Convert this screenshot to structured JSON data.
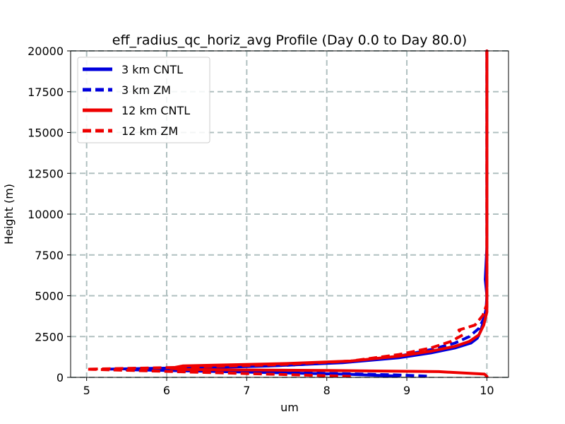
{
  "chart_data": {
    "type": "line",
    "title": "eff_radius_qc_horiz_avg Profile (Day 0.0 to Day 80.0)",
    "xlabel": "um",
    "ylabel": "Height (m)",
    "xlim": [
      4.8,
      10.27
    ],
    "ylim": [
      0,
      20000
    ],
    "x_ticks": [
      5,
      6,
      7,
      8,
      9,
      10
    ],
    "y_ticks": [
      0,
      2500,
      5000,
      7500,
      10000,
      12500,
      15000,
      17500,
      20000
    ],
    "grid": true,
    "legend_position": "upper-left",
    "series": [
      {
        "name": "3 km CNTL",
        "color": "#0000dd",
        "style": "solid",
        "points": [
          [
            8.9,
            80
          ],
          [
            8.3,
            180
          ],
          [
            7.4,
            280
          ],
          [
            6.7,
            350
          ],
          [
            6.0,
            420
          ],
          [
            5.5,
            470
          ],
          [
            6.2,
            560
          ],
          [
            7.3,
            700
          ],
          [
            8.2,
            900
          ],
          [
            8.9,
            1200
          ],
          [
            9.3,
            1500
          ],
          [
            9.6,
            1800
          ],
          [
            9.8,
            2100
          ],
          [
            9.88,
            2400
          ],
          [
            9.92,
            2800
          ],
          [
            9.96,
            3500
          ],
          [
            9.99,
            4200
          ],
          [
            10.0,
            5000
          ],
          [
            9.98,
            6000
          ],
          [
            10.0,
            8000
          ],
          [
            10.0,
            10000
          ],
          [
            10.0,
            15000
          ],
          [
            10.0,
            20000
          ]
        ]
      },
      {
        "name": "3 km ZM",
        "color": "#0000dd",
        "style": "dashed",
        "points": [
          [
            9.25,
            80
          ],
          [
            8.8,
            160
          ],
          [
            7.9,
            260
          ],
          [
            7.0,
            360
          ],
          [
            6.0,
            430
          ],
          [
            5.2,
            500
          ],
          [
            6.4,
            600
          ],
          [
            7.5,
            740
          ],
          [
            8.3,
            950
          ],
          [
            8.9,
            1300
          ],
          [
            9.3,
            1700
          ],
          [
            9.6,
            2100
          ],
          [
            9.78,
            2500
          ],
          [
            9.9,
            3000
          ],
          [
            9.96,
            3600
          ],
          [
            10.0,
            4300
          ],
          [
            10.0,
            5000
          ],
          [
            10.0,
            8000
          ],
          [
            10.0,
            12000
          ],
          [
            10.0,
            16000
          ],
          [
            10.0,
            20000
          ]
        ]
      },
      {
        "name": "12 km CNTL",
        "color": "#ee0000",
        "style": "solid",
        "points": [
          [
            10.0,
            60
          ],
          [
            9.97,
            200
          ],
          [
            9.4,
            350
          ],
          [
            8.0,
            420
          ],
          [
            6.2,
            480
          ],
          [
            6.05,
            560
          ],
          [
            6.2,
            700
          ],
          [
            7.5,
            850
          ],
          [
            8.3,
            1000
          ],
          [
            8.9,
            1300
          ],
          [
            9.3,
            1600
          ],
          [
            9.6,
            1900
          ],
          [
            9.78,
            2200
          ],
          [
            9.9,
            2600
          ],
          [
            9.96,
            3200
          ],
          [
            10.0,
            4000
          ],
          [
            10.0,
            5000
          ],
          [
            10.0,
            8000
          ],
          [
            10.0,
            12000
          ],
          [
            10.0,
            16000
          ],
          [
            10.0,
            20000
          ]
        ]
      },
      {
        "name": "12 km ZM",
        "color": "#ee0000",
        "style": "dashed",
        "points": [
          [
            8.3,
            60
          ],
          [
            7.5,
            170
          ],
          [
            6.5,
            300
          ],
          [
            5.6,
            420
          ],
          [
            5.0,
            500
          ],
          [
            6.2,
            620
          ],
          [
            7.4,
            780
          ],
          [
            8.3,
            1000
          ],
          [
            8.9,
            1400
          ],
          [
            9.3,
            1800
          ],
          [
            9.55,
            2200
          ],
          [
            9.7,
            2600
          ],
          [
            9.65,
            2900
          ],
          [
            9.85,
            3200
          ],
          [
            9.95,
            3800
          ],
          [
            10.0,
            4500
          ],
          [
            10.0,
            5500
          ],
          [
            10.0,
            9000
          ],
          [
            10.0,
            14000
          ],
          [
            10.0,
            20000
          ]
        ]
      }
    ]
  }
}
